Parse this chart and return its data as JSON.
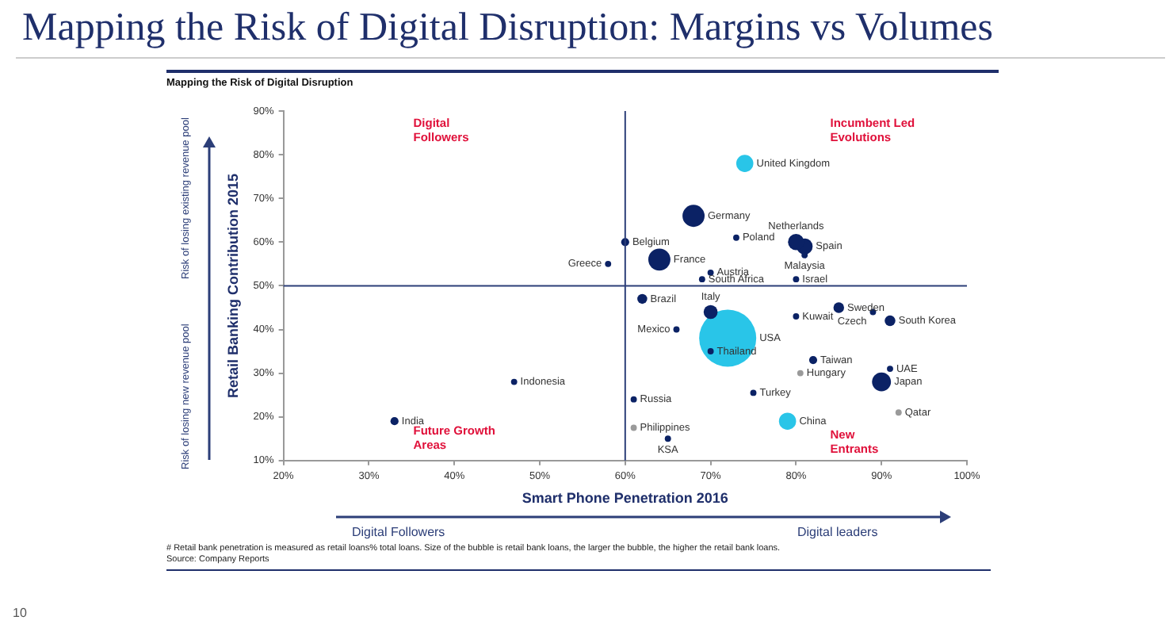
{
  "chart_data": {
    "type": "bubble",
    "title": "Mapping the Risk of Digital Disruption: Margins vs Volumes",
    "subtitle": "Mapping the Risk of Digital Disruption",
    "xlabel": "Smart Phone Penetration 2016",
    "ylabel": "Retail Banking Contribution 2015",
    "xlim": [
      20,
      100
    ],
    "xticks": [
      {
        "value": 20,
        "label": "20%"
      },
      {
        "value": 30,
        "label": "30%"
      },
      {
        "value": 40,
        "label": "40%"
      },
      {
        "value": 50,
        "label": "50%"
      },
      {
        "value": 60,
        "label": "60%"
      },
      {
        "value": 70,
        "label": "70%"
      },
      {
        "value": 80,
        "label": "80%"
      },
      {
        "value": 90,
        "label": "90%"
      },
      {
        "value": 100,
        "label": "100%"
      }
    ],
    "ylim": [
      10,
      90
    ],
    "yticks": [
      {
        "value": 10,
        "label": "10%"
      },
      {
        "value": 20,
        "label": "20%"
      },
      {
        "value": 30,
        "label": "30%"
      },
      {
        "value": 40,
        "label": "40%"
      },
      {
        "value": 50,
        "label": "50%"
      },
      {
        "value": 60,
        "label": "60%"
      },
      {
        "value": 70,
        "label": "70%"
      },
      {
        "value": 80,
        "label": "80%"
      },
      {
        "value": 90,
        "label": "90%"
      }
    ],
    "grid": false,
    "legend": false,
    "ref_lines": [
      {
        "axis": "x",
        "value": 60,
        "color": "#2c3e78"
      },
      {
        "axis": "y",
        "value": 50,
        "color": "#2c3e78"
      }
    ],
    "annotations": [
      "Digital Followers",
      "Incumbent Led Evolutions",
      "Future Growth Areas",
      "New Entrants",
      "Digital Followers",
      "Digital leaders",
      "Risk of losing new revenue pool",
      "Risk of losing existing revenue pool",
      "# Retail bank penetration is measured as retail loans% total loans. Size of the bubble is retail bank loans, the larger the bubble, the higher the retail bank loans.",
      "Source: Company Reports",
      "10"
    ],
    "series": [
      {
        "name": "India",
        "color": "#0b2265",
        "x": [
          33
        ],
        "values": [
          19
        ],
        "sizes": [
          0.02
        ]
      },
      {
        "name": "Indonesia",
        "color": "#0b2265",
        "x": [
          47
        ],
        "values": [
          28
        ],
        "sizes": [
          0.012
        ]
      },
      {
        "name": "Greece",
        "color": "#0b2265",
        "x": [
          58
        ],
        "values": [
          55
        ],
        "sizes": [
          0.012
        ]
      },
      {
        "name": "Belgium",
        "color": "#0b2265",
        "x": [
          60
        ],
        "values": [
          60
        ],
        "sizes": [
          0.02
        ]
      },
      {
        "name": "United Kingdom",
        "color": "#29c5e8",
        "x": [
          74
        ],
        "values": [
          78
        ],
        "sizes": [
          0.09
        ]
      },
      {
        "name": "Germany",
        "color": "#0b2265",
        "x": [
          68
        ],
        "values": [
          66
        ],
        "sizes": [
          0.15
        ]
      },
      {
        "name": "Poland",
        "color": "#0b2265",
        "x": [
          73
        ],
        "values": [
          61
        ],
        "sizes": [
          0.012
        ]
      },
      {
        "name": "Netherlands",
        "color": "#0b2265",
        "x": [
          80
        ],
        "values": [
          60
        ],
        "sizes": [
          0.08
        ]
      },
      {
        "name": "Spain",
        "color": "#0b2265",
        "x": [
          81
        ],
        "values": [
          59
        ],
        "sizes": [
          0.08
        ]
      },
      {
        "name": "Malaysia",
        "color": "#0b2265",
        "x": [
          81
        ],
        "values": [
          57
        ],
        "sizes": [
          0.012
        ]
      },
      {
        "name": "France",
        "color": "#0b2265",
        "x": [
          64
        ],
        "values": [
          56
        ],
        "sizes": [
          0.15
        ]
      },
      {
        "name": "Austria",
        "color": "#0b2265",
        "x": [
          70
        ],
        "values": [
          53
        ],
        "sizes": [
          0.012
        ]
      },
      {
        "name": "South Africa",
        "color": "#0b2265",
        "x": [
          69
        ],
        "values": [
          51.5
        ],
        "sizes": [
          0.012
        ]
      },
      {
        "name": "Israel",
        "color": "#0b2265",
        "x": [
          80
        ],
        "values": [
          51.5
        ],
        "sizes": [
          0.012
        ]
      },
      {
        "name": "Brazil",
        "color": "#0b2265",
        "x": [
          62
        ],
        "values": [
          47
        ],
        "sizes": [
          0.03
        ]
      },
      {
        "name": "Italy",
        "color": "#0b2265",
        "x": [
          70
        ],
        "values": [
          44
        ],
        "sizes": [
          0.06
        ]
      },
      {
        "name": "Sweden",
        "color": "#0b2265",
        "x": [
          85
        ],
        "values": [
          45
        ],
        "sizes": [
          0.035
        ]
      },
      {
        "name": "Czech",
        "color": "#0b2265",
        "x": [
          89
        ],
        "values": [
          44
        ],
        "sizes": [
          0.012
        ]
      },
      {
        "name": "Kuwait",
        "color": "#0b2265",
        "x": [
          80
        ],
        "values": [
          43
        ],
        "sizes": [
          0.012
        ]
      },
      {
        "name": "South Korea",
        "color": "#0b2265",
        "x": [
          91
        ],
        "values": [
          42
        ],
        "sizes": [
          0.035
        ]
      },
      {
        "name": "Mexico",
        "color": "#0b2265",
        "x": [
          66
        ],
        "values": [
          40
        ],
        "sizes": [
          0.012
        ]
      },
      {
        "name": "USA",
        "color": "#29c5e8",
        "x": [
          72
        ],
        "values": [
          38
        ],
        "sizes": [
          1
        ]
      },
      {
        "name": "Thailand",
        "color": "#0b2265",
        "x": [
          70
        ],
        "values": [
          35
        ],
        "sizes": [
          0.012
        ]
      },
      {
        "name": "Taiwan",
        "color": "#0b2265",
        "x": [
          82
        ],
        "values": [
          33
        ],
        "sizes": [
          0.02
        ]
      },
      {
        "name": "UAE",
        "color": "#0b2265",
        "x": [
          91
        ],
        "values": [
          31
        ],
        "sizes": [
          0.012
        ]
      },
      {
        "name": "Hungary",
        "color": "#9a9a9a",
        "x": [
          80.5
        ],
        "values": [
          30
        ],
        "sizes": [
          0.012
        ]
      },
      {
        "name": "Japan",
        "color": "#0b2265",
        "x": [
          90
        ],
        "values": [
          28
        ],
        "sizes": [
          0.11
        ]
      },
      {
        "name": "Turkey",
        "color": "#0b2265",
        "x": [
          75
        ],
        "values": [
          25.5
        ],
        "sizes": [
          0.012
        ]
      },
      {
        "name": "Russia",
        "color": "#0b2265",
        "x": [
          61
        ],
        "values": [
          24
        ],
        "sizes": [
          0.012
        ]
      },
      {
        "name": "Qatar",
        "color": "#9a9a9a",
        "x": [
          92
        ],
        "values": [
          21
        ],
        "sizes": [
          0.012
        ]
      },
      {
        "name": "China",
        "color": "#29c5e8",
        "x": [
          79
        ],
        "values": [
          19
        ],
        "sizes": [
          0.09
        ]
      },
      {
        "name": "Philippines",
        "color": "#9a9a9a",
        "x": [
          61
        ],
        "values": [
          17.5
        ],
        "sizes": [
          0.012
        ]
      },
      {
        "name": "KSA",
        "color": "#0b2265",
        "x": [
          65
        ],
        "values": [
          15
        ],
        "sizes": [
          0.012
        ]
      }
    ]
  }
}
